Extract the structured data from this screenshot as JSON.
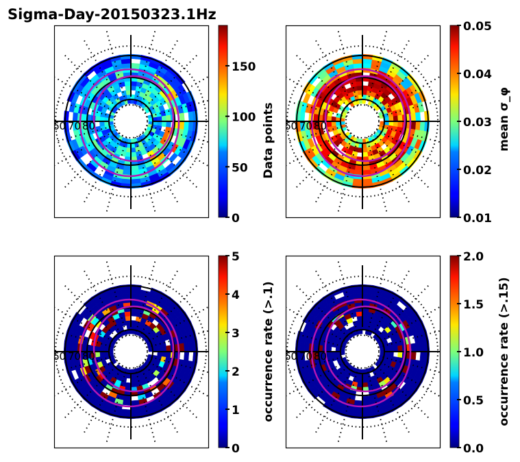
{
  "figure_title": "Sigma-Day-20150323.1Hz",
  "chart_data": [
    {
      "type": "heatmap",
      "projection": "polar (magnetic latitude / MLT)",
      "title": "",
      "lat_labels": [
        "60",
        "70",
        "80"
      ],
      "colormap": "jet",
      "colorbar": {
        "label": "Data points",
        "range": [
          0,
          190
        ],
        "ticks": [
          0,
          50,
          100,
          150
        ],
        "tick_labels": [
          "0",
          "50",
          "100",
          "150"
        ]
      },
      "description": "Counts mostly 0-100; higher values (100-190) on dawn/right side near 65-70 lat"
    },
    {
      "type": "heatmap",
      "projection": "polar (magnetic latitude / MLT)",
      "title": "",
      "lat_labels": [
        "60",
        "70",
        "80"
      ],
      "colormap": "jet",
      "colorbar": {
        "label": "mean σ_φ",
        "range": [
          0.01,
          0.05
        ],
        "ticks": [
          0.01,
          0.02,
          0.03,
          0.04,
          0.05
        ],
        "tick_labels": [
          "0.01",
          "0.02",
          "0.03",
          "0.04",
          "0.05"
        ]
      },
      "description": "High mean sigma-phi (~0.05) in ring ~65-80 lat, lower (0.02-0.035) at outer ring"
    },
    {
      "type": "heatmap",
      "projection": "polar (magnetic latitude / MLT)",
      "title": "",
      "lat_labels": [
        "60",
        "70",
        "80"
      ],
      "colormap": "jet",
      "colorbar": {
        "label": "occurrence rate (>.1)",
        "range": [
          0,
          5
        ],
        "ticks": [
          0,
          1,
          2,
          3,
          4,
          5
        ],
        "tick_labels": [
          "0",
          "1",
          "2",
          "3",
          "4",
          "5"
        ]
      },
      "description": "Mostly 0; high (5) patches within auroral oval ring"
    },
    {
      "type": "heatmap",
      "projection": "polar (magnetic latitude / MLT)",
      "title": "",
      "lat_labels": [
        "60",
        "70",
        "80"
      ],
      "colormap": "jet",
      "colorbar": {
        "label": "occurrence rate (>.15)",
        "range": [
          0.0,
          2.0
        ],
        "ticks": [
          0.0,
          0.5,
          1.0,
          1.5,
          2.0
        ],
        "tick_labels": [
          "0.0",
          "0.5",
          "1.0",
          "1.5",
          "2.0"
        ]
      },
      "description": "Mostly 0; sparse high (2.0) patches in auroral oval"
    }
  ]
}
